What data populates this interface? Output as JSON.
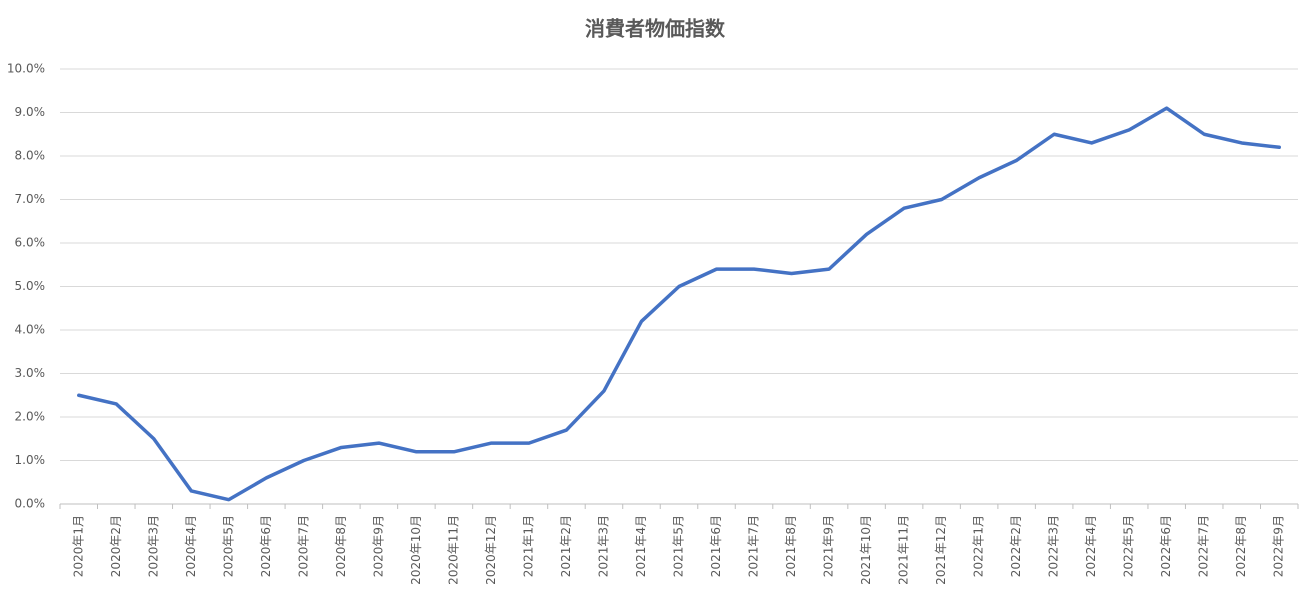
{
  "chart_data": {
    "type": "line",
    "title": "消費者物価指数",
    "categories": [
      "2020年1月",
      "2020年2月",
      "2020年3月",
      "2020年4月",
      "2020年5月",
      "2020年6月",
      "2020年7月",
      "2020年8月",
      "2020年9月",
      "2020年10月",
      "2020年11月",
      "2020年12月",
      "2021年1月",
      "2021年2月",
      "2021年3月",
      "2021年4月",
      "2021年5月",
      "2021年6月",
      "2021年7月",
      "2021年8月",
      "2021年9月",
      "2021年10月",
      "2021年11月",
      "2021年12月",
      "2022年1月",
      "2022年2月",
      "2022年3月",
      "2022年4月",
      "2022年5月",
      "2022年6月",
      "2022年7月",
      "2022年8月",
      "2022年9月"
    ],
    "values": [
      2.5,
      2.3,
      1.5,
      0.3,
      0.1,
      0.6,
      1.0,
      1.3,
      1.4,
      1.2,
      1.2,
      1.4,
      1.4,
      1.7,
      2.6,
      4.2,
      5.0,
      5.4,
      5.4,
      5.3,
      5.4,
      6.2,
      6.8,
      7.0,
      7.5,
      7.9,
      8.5,
      8.3,
      8.6,
      9.1,
      8.5,
      8.3,
      8.2
    ],
    "color": "#4472c4",
    "ylim": [
      0,
      10
    ],
    "yticks": [
      {
        "value": 0,
        "label": "0.0%"
      },
      {
        "value": 1,
        "label": "1.0%"
      },
      {
        "value": 2,
        "label": "2.0%"
      },
      {
        "value": 3,
        "label": "3.0%"
      },
      {
        "value": 4,
        "label": "4.0%"
      },
      {
        "value": 5,
        "label": "5.0%"
      },
      {
        "value": 6,
        "label": "6.0%"
      },
      {
        "value": 7,
        "label": "7.0%"
      },
      {
        "value": 8,
        "label": "8.0%"
      },
      {
        "value": 9,
        "label": "9.0%"
      },
      {
        "value": 10,
        "label": "10.0%"
      }
    ],
    "grid": true
  }
}
